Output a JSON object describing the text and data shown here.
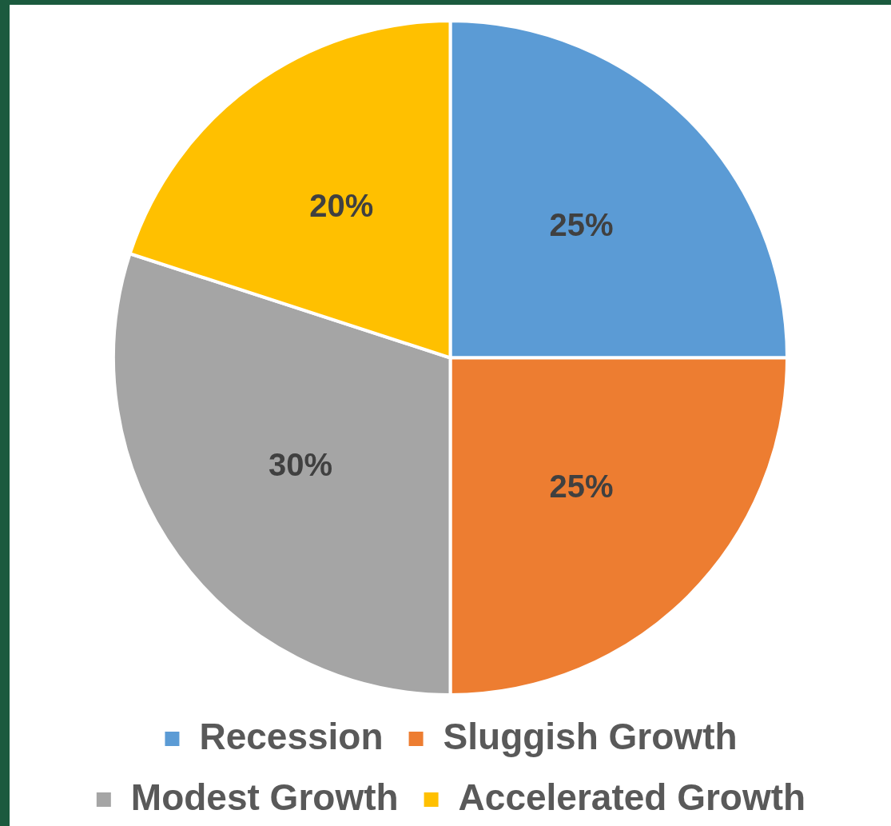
{
  "chart_data": {
    "type": "pie",
    "categories": [
      "Recession",
      "Sluggish Growth",
      "Modest Growth",
      "Accelerated Growth"
    ],
    "values": [
      25,
      25,
      30,
      20
    ],
    "colors": [
      "#5b9bd5",
      "#ed7d31",
      "#a5a5a5",
      "#ffc000"
    ],
    "value_labels": [
      "25%",
      "25%",
      "30%",
      "20%"
    ],
    "legend": "bottom"
  }
}
